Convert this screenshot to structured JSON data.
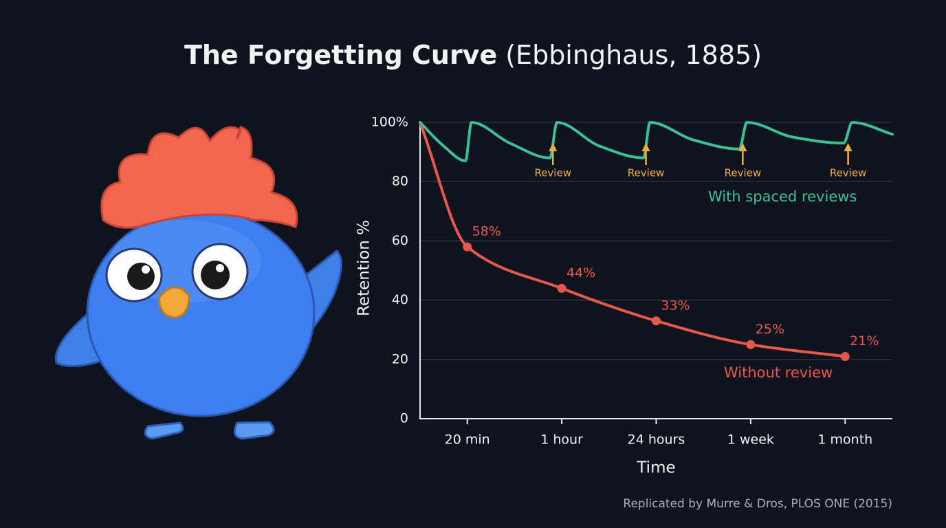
{
  "chart_data": {
    "type": "line",
    "title": "The Forgetting Curve",
    "title_note": "(Ebbinghaus, 1885)",
    "xlabel": "Time",
    "ylabel": "Retention %",
    "source": "Replicated by Murre & Dros, PLOS ONE (2015)",
    "xlim": [
      0,
      10
    ],
    "xticks": [
      {
        "value": 1,
        "label": "20 min"
      },
      {
        "value": 3,
        "label": "1 hour"
      },
      {
        "value": 5,
        "label": "24 hours"
      },
      {
        "value": 7,
        "label": "1 week"
      },
      {
        "value": 9,
        "label": "1 month"
      }
    ],
    "ylim": [
      0,
      100
    ],
    "yticks": [
      0,
      20,
      40,
      60,
      80,
      {
        "value": 100,
        "label": "100%"
      }
    ],
    "grid": true,
    "series": [
      {
        "name": "Without review",
        "color": "#e8574e",
        "x": [
          0,
          1,
          3,
          5,
          7,
          9
        ],
        "values": [
          100,
          58,
          44,
          33,
          25,
          21
        ],
        "value_labels": [
          null,
          "58%",
          "44%",
          "33%",
          "25%",
          "21%"
        ]
      },
      {
        "name": "With spaced reviews",
        "color": "#3dbf95",
        "x": [
          0,
          0.5,
          0.96,
          1.09,
          1.9,
          2.75,
          2.9,
          3.8,
          4.73,
          4.87,
          5.8,
          6.76,
          6.92,
          7.9,
          8.97,
          9.15,
          10
        ],
        "values": [
          100,
          92,
          87,
          100,
          93,
          88,
          100,
          92,
          88,
          100,
          94,
          91,
          100,
          95,
          93,
          100,
          96
        ]
      }
    ],
    "annotations": [
      {
        "text": "Review",
        "x": 2.9,
        "color": "#f0b040"
      },
      {
        "text": "Review",
        "x": 4.87,
        "color": "#f0b040"
      },
      {
        "text": "Review",
        "x": 6.92,
        "color": "#f0b040"
      },
      {
        "text": "Review",
        "x": 9.15,
        "color": "#f0b040"
      }
    ]
  }
}
